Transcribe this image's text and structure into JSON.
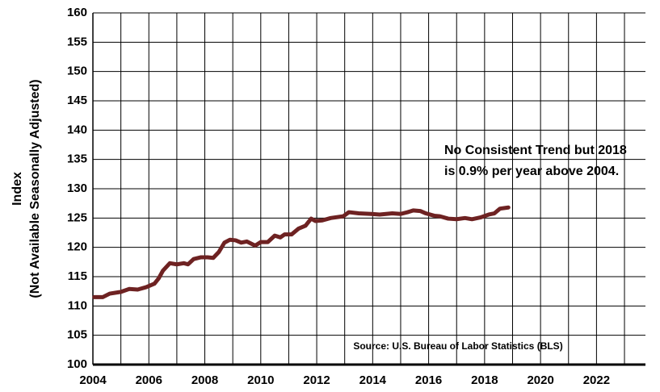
{
  "chart_data": {
    "type": "line",
    "y_label_lines": [
      "Index",
      "(Not Available Seasonally Adjusted)"
    ],
    "annotation_lines": [
      "No Consistent Trend but 2018",
      "is 0.9% per year above 2004."
    ],
    "source": "Source: U.S. Bureau of Labor Statistics (BLS)",
    "xlim": [
      2004,
      2023.75
    ],
    "ylim": [
      100,
      160
    ],
    "xticks": [
      2004,
      2006,
      2008,
      2010,
      2012,
      2014,
      2016,
      2018,
      2020,
      2022
    ],
    "x_minor_ticks": [
      2005,
      2007,
      2009,
      2011,
      2013,
      2015,
      2017,
      2019,
      2021,
      2023
    ],
    "yticks": [
      100,
      105,
      110,
      115,
      120,
      125,
      130,
      135,
      140,
      145,
      150,
      155,
      160
    ],
    "grid": true,
    "series": [
      {
        "color": "#6e2222",
        "x": [
          2004.05,
          2004.35,
          2004.6,
          2005,
          2005.3,
          2005.6,
          2005.9,
          2006.2,
          2006.35,
          2006.5,
          2006.75,
          2007,
          2007.25,
          2007.4,
          2007.6,
          2007.85,
          2008.1,
          2008.3,
          2008.5,
          2008.7,
          2008.9,
          2009.1,
          2009.3,
          2009.5,
          2009.8,
          2010,
          2010.25,
          2010.5,
          2010.7,
          2010.85,
          2011.1,
          2011.35,
          2011.6,
          2011.8,
          2011.95,
          2012.2,
          2012.5,
          2012.95,
          2013.15,
          2013.5,
          2013.95,
          2014.25,
          2014.7,
          2015,
          2015.25,
          2015.45,
          2015.7,
          2015.9,
          2016.2,
          2016.4,
          2016.7,
          2017,
          2017.3,
          2017.55,
          2017.85,
          2018.15,
          2018.35,
          2018.55,
          2018.85
        ],
        "values": [
          111.5,
          111.5,
          112.1,
          112.4,
          112.9,
          112.8,
          113.2,
          113.8,
          114.7,
          116,
          117.3,
          117.1,
          117.3,
          117.1,
          118,
          118.3,
          118.3,
          118.2,
          119.2,
          120.8,
          121.3,
          121.2,
          120.8,
          121,
          120.3,
          120.9,
          120.9,
          122,
          121.7,
          122.2,
          122.2,
          123.2,
          123.7,
          124.9,
          124.5,
          124.6,
          125,
          125.3,
          126,
          125.8,
          125.7,
          125.6,
          125.8,
          125.7,
          126,
          126.3,
          126.2,
          125.8,
          125.4,
          125.3,
          124.9,
          124.8,
          125,
          124.8,
          125.1,
          125.6,
          125.8,
          126.6,
          126.8
        ]
      }
    ]
  }
}
